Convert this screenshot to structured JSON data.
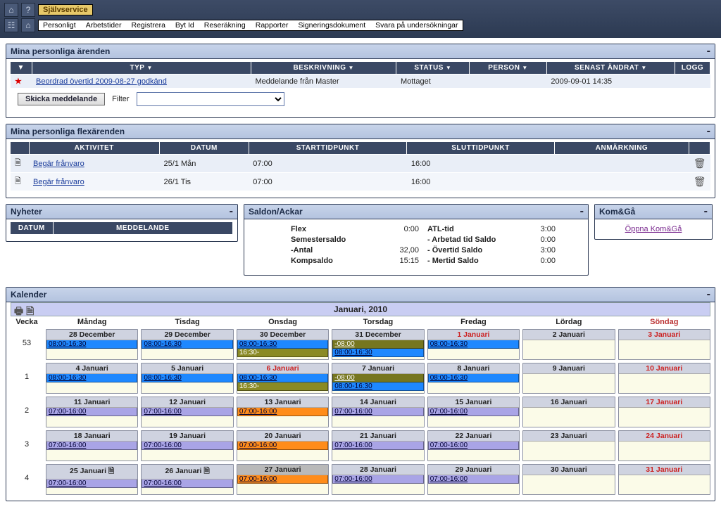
{
  "topbar": {
    "service_button": "Självservice",
    "menu": [
      "Personligt",
      "Arbetstider",
      "Registrera",
      "Byt Id",
      "Reseräkning",
      "Rapporter",
      "Signeringsdokument",
      "Svara på undersökningar"
    ]
  },
  "errands": {
    "title": "Mina personliga ärenden",
    "cols": [
      "",
      "TYP",
      "BESKRIVNING",
      "STATUS",
      "PERSON",
      "SENAST ÄNDRAT",
      "LOGG"
    ],
    "rows": [
      {
        "star": true,
        "typ": "Beordrad övertid 2009-08-27 godkänd",
        "beskr": "Meddelande från Master",
        "status": "Mottaget",
        "person": "",
        "senast": "2009-09-01 14:35"
      }
    ],
    "send_btn": "Skicka meddelande",
    "filter_label": "Filter"
  },
  "flex": {
    "title": "Mina personliga flexärenden",
    "cols": [
      "",
      "AKTIVITET",
      "DATUM",
      "STARTTIDPUNKT",
      "SLUTTIDPUNKT",
      "ANMÄRKNING",
      ""
    ],
    "rows": [
      {
        "akt": "Begär frånvaro",
        "datum": "25/1 Mån",
        "start": "07:00",
        "slut": "16:00"
      },
      {
        "akt": "Begär frånvaro",
        "datum": "26/1 Tis",
        "start": "07:00",
        "slut": "16:00"
      }
    ]
  },
  "nyheter": {
    "title": "Nyheter",
    "cols": [
      "DATUM",
      "MEDDELANDE"
    ]
  },
  "saldon": {
    "title": "Saldon/Ackar",
    "left": [
      {
        "lbl": "Flex",
        "val": "0:00"
      },
      {
        "lbl": "Semestersaldo",
        "val": ""
      },
      {
        "lbl": "-Antal",
        "val": "32,00"
      },
      {
        "lbl": "Kompsaldo",
        "val": "15:15"
      }
    ],
    "right": [
      {
        "lbl": "ATL-tid",
        "val": "3:00"
      },
      {
        "lbl": "- Arbetad tid Saldo",
        "val": "0:00"
      },
      {
        "lbl": "- Övertid Saldo",
        "val": "3:00"
      },
      {
        "lbl": "- Mertid Saldo",
        "val": "0:00"
      }
    ]
  },
  "komga": {
    "title": "Kom&Gå",
    "link": "Öppna Kom&Gå"
  },
  "calendar": {
    "title": "Kalender",
    "month": "Januari, 2010",
    "weekcol": "Vecka",
    "daynames": [
      "Måndag",
      "Tisdag",
      "Onsdag",
      "Torsdag",
      "Fredag",
      "Lördag",
      "Söndag"
    ],
    "weeks": [
      {
        "num": "53",
        "days": [
          {
            "hdr": "28 December",
            "cells": [
              {
                "c": "blue",
                "t": "08:00-16:30"
              }
            ]
          },
          {
            "hdr": "29 December",
            "cells": [
              {
                "c": "blue",
                "t": "08:00-16:30"
              }
            ]
          },
          {
            "hdr": "30 December",
            "cells": [
              {
                "c": "blue",
                "t": "08:00-16:30"
              },
              {
                "c": "olive2",
                "t": "16:30-"
              }
            ]
          },
          {
            "hdr": "31 December",
            "cells": [
              {
                "c": "olive",
                "t": "-08:00"
              },
              {
                "c": "blue",
                "t": "08:00-16:30"
              }
            ]
          },
          {
            "hdr": "1 Januari",
            "red": true,
            "cells": [
              {
                "c": "blue",
                "t": "08:00-16:30"
              }
            ]
          },
          {
            "hdr": "2 Januari",
            "cells": []
          },
          {
            "hdr": "3 Januari",
            "red": true,
            "cells": []
          }
        ]
      },
      {
        "num": "1",
        "days": [
          {
            "hdr": "4 Januari",
            "cells": [
              {
                "c": "blue",
                "t": "08:00-16:30"
              }
            ]
          },
          {
            "hdr": "5 Januari",
            "cells": [
              {
                "c": "blue",
                "t": "08:00-16:30"
              }
            ]
          },
          {
            "hdr": "6 Januari",
            "red": true,
            "cells": [
              {
                "c": "blue",
                "t": "08:00-16:30"
              },
              {
                "c": "olive2",
                "t": "16:30-"
              }
            ]
          },
          {
            "hdr": "7 Januari",
            "cells": [
              {
                "c": "olive",
                "t": "-08:00"
              },
              {
                "c": "blue",
                "t": "08:00-16:30"
              }
            ]
          },
          {
            "hdr": "8 Januari",
            "cells": [
              {
                "c": "blue",
                "t": "08:00-16:30"
              }
            ]
          },
          {
            "hdr": "9 Januari",
            "cells": []
          },
          {
            "hdr": "10 Januari",
            "red": true,
            "cells": []
          }
        ]
      },
      {
        "num": "2",
        "days": [
          {
            "hdr": "11 Januari",
            "cells": [
              {
                "c": "purple",
                "t": "07:00-16:00"
              }
            ]
          },
          {
            "hdr": "12 Januari",
            "cells": [
              {
                "c": "purple",
                "t": "07:00-16:00"
              }
            ]
          },
          {
            "hdr": "13 Januari",
            "cells": [
              {
                "c": "orange",
                "t": "07:00-16:00"
              }
            ]
          },
          {
            "hdr": "14 Januari",
            "cells": [
              {
                "c": "purple",
                "t": "07:00-16:00"
              }
            ]
          },
          {
            "hdr": "15 Januari",
            "cells": [
              {
                "c": "purple",
                "t": "07:00-16:00"
              }
            ]
          },
          {
            "hdr": "16 Januari",
            "cells": []
          },
          {
            "hdr": "17 Januari",
            "red": true,
            "cells": []
          }
        ]
      },
      {
        "num": "3",
        "days": [
          {
            "hdr": "18 Januari",
            "cells": [
              {
                "c": "purple",
                "t": "07:00-16:00"
              }
            ]
          },
          {
            "hdr": "19 Januari",
            "cells": [
              {
                "c": "purple",
                "t": "07:00-16:00"
              }
            ]
          },
          {
            "hdr": "20 Januari",
            "cells": [
              {
                "c": "orange",
                "t": "07:00-16:00"
              }
            ]
          },
          {
            "hdr": "21 Januari",
            "cells": [
              {
                "c": "purple",
                "t": "07:00-16:00"
              }
            ]
          },
          {
            "hdr": "22 Januari",
            "cells": [
              {
                "c": "purple",
                "t": "07:00-16:00"
              }
            ]
          },
          {
            "hdr": "23 Januari",
            "cells": []
          },
          {
            "hdr": "24 Januari",
            "red": true,
            "cells": []
          }
        ]
      },
      {
        "num": "4",
        "days": [
          {
            "hdr": "25 Januari",
            "icon": true,
            "cells": [
              {
                "c": "purple",
                "t": "07:00-16:00"
              }
            ]
          },
          {
            "hdr": "26 Januari",
            "icon": true,
            "cells": [
              {
                "c": "purple",
                "t": "07:00-16:00"
              }
            ]
          },
          {
            "hdr": "27 Januari",
            "today": true,
            "cells": [
              {
                "c": "orange",
                "t": "07:00-16:00"
              }
            ]
          },
          {
            "hdr": "28 Januari",
            "cells": [
              {
                "c": "purple",
                "t": "07:00-16:00"
              }
            ]
          },
          {
            "hdr": "29 Januari",
            "cells": [
              {
                "c": "purple",
                "t": "07:00-16:00"
              }
            ]
          },
          {
            "hdr": "30 Januari",
            "cells": []
          },
          {
            "hdr": "31 Januari",
            "red": true,
            "cells": []
          }
        ]
      }
    ]
  }
}
